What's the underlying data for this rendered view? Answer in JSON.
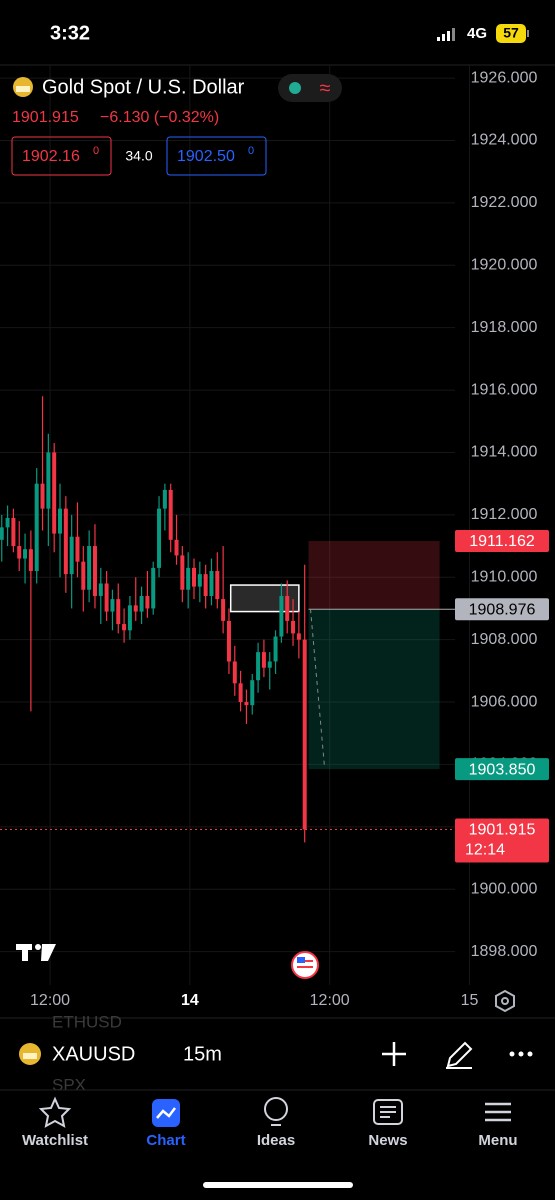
{
  "status_bar": {
    "time": "3:32",
    "network": "4G",
    "battery": "57"
  },
  "header": {
    "title": "Gold Spot / U.S. Dollar",
    "price": "1901.915",
    "change": "−6.130 (−0.32%)",
    "bid": "1902.16",
    "bid_sup": "0",
    "spread": "34.0",
    "ask": "1902.50",
    "ask_sup": "0"
  },
  "chart_data": {
    "type": "candlestick",
    "up_color": "#089981",
    "down_color": "#f23645",
    "candles": [
      [
        1911.2,
        1912,
        1910.5,
        1911.6
      ],
      [
        1911.6,
        1912.3,
        1911,
        1911.9
      ],
      [
        1911.9,
        1912.2,
        1910.8,
        1911.0
      ],
      [
        1911.0,
        1911.8,
        1910.2,
        1910.6
      ],
      [
        1910.6,
        1911.4,
        1909.8,
        1910.9
      ],
      [
        1910.9,
        1911.5,
        1905.7,
        1910.2
      ],
      [
        1910.2,
        1913.5,
        1909.8,
        1913.0
      ],
      [
        1913.0,
        1915.8,
        1911.5,
        1912.2
      ],
      [
        1912.2,
        1914.6,
        1911.0,
        1914.0
      ],
      [
        1914.0,
        1914.3,
        1910.8,
        1911.4
      ],
      [
        1911.4,
        1913.0,
        1910.0,
        1912.2
      ],
      [
        1912.2,
        1912.6,
        1909.5,
        1910.1
      ],
      [
        1910.1,
        1912.0,
        1909.0,
        1911.3
      ],
      [
        1911.3,
        1912.4,
        1910.0,
        1910.5
      ],
      [
        1910.5,
        1911.0,
        1908.9,
        1909.6
      ],
      [
        1909.6,
        1911.5,
        1909.2,
        1911.0
      ],
      [
        1911.0,
        1911.7,
        1909.0,
        1909.4
      ],
      [
        1909.4,
        1910.3,
        1908.5,
        1909.8
      ],
      [
        1909.8,
        1910.2,
        1908.6,
        1908.9
      ],
      [
        1908.9,
        1909.6,
        1908.3,
        1909.3
      ],
      [
        1909.3,
        1909.8,
        1908.2,
        1908.5
      ],
      [
        1908.5,
        1909.0,
        1907.9,
        1908.3
      ],
      [
        1908.3,
        1909.4,
        1908.0,
        1909.1
      ],
      [
        1909.1,
        1910.0,
        1908.6,
        1908.9
      ],
      [
        1908.9,
        1909.7,
        1908.5,
        1909.4
      ],
      [
        1909.4,
        1910.2,
        1908.7,
        1909.0
      ],
      [
        1909.0,
        1910.5,
        1908.8,
        1910.3
      ],
      [
        1910.3,
        1912.6,
        1910.0,
        1912.2
      ],
      [
        1912.2,
        1913.0,
        1911.5,
        1912.8
      ],
      [
        1912.8,
        1913.0,
        1910.8,
        1911.2
      ],
      [
        1911.2,
        1912.0,
        1910.4,
        1910.7
      ],
      [
        1910.7,
        1911.0,
        1909.2,
        1909.6
      ],
      [
        1909.6,
        1910.8,
        1909.0,
        1910.3
      ],
      [
        1910.3,
        1910.6,
        1909.3,
        1909.7
      ],
      [
        1909.7,
        1910.5,
        1909.2,
        1910.1
      ],
      [
        1910.1,
        1910.4,
        1909.0,
        1909.4
      ],
      [
        1909.4,
        1910.6,
        1909.1,
        1910.2
      ],
      [
        1910.2,
        1910.8,
        1909.0,
        1909.3
      ],
      [
        1909.3,
        1911.0,
        1908.2,
        1908.6
      ],
      [
        1908.6,
        1909.0,
        1906.9,
        1907.3
      ],
      [
        1907.3,
        1907.8,
        1906.2,
        1906.6
      ],
      [
        1906.6,
        1907.0,
        1905.7,
        1906.0
      ],
      [
        1906.0,
        1906.4,
        1905.3,
        1905.9
      ],
      [
        1905.9,
        1906.9,
        1905.6,
        1906.7
      ],
      [
        1906.7,
        1907.9,
        1906.3,
        1907.6
      ],
      [
        1907.6,
        1908.0,
        1906.8,
        1907.1
      ],
      [
        1907.1,
        1907.6,
        1906.4,
        1907.3
      ],
      [
        1907.3,
        1908.3,
        1906.9,
        1908.1
      ],
      [
        1908.1,
        1909.8,
        1907.9,
        1909.4
      ],
      [
        1909.4,
        1909.9,
        1908.2,
        1908.6
      ],
      [
        1908.6,
        1909.3,
        1907.8,
        1908.2
      ],
      [
        1908.2,
        1908.9,
        1907.4,
        1908.0
      ],
      [
        1908.0,
        1910.4,
        1901.5,
        1901.915
      ]
    ],
    "ylim": [
      1896.93,
      1926.42
    ],
    "yticks": [
      {
        "value": 1926,
        "label": "1926.000"
      },
      {
        "value": 1924,
        "label": "1924.000"
      },
      {
        "value": 1922,
        "label": "1922.000"
      },
      {
        "value": 1920,
        "label": "1920.000"
      },
      {
        "value": 1918,
        "label": "1918.000"
      },
      {
        "value": 1916,
        "label": "1916.000"
      },
      {
        "value": 1914,
        "label": "1914.000"
      },
      {
        "value": 1912,
        "label": "1912.000"
      },
      {
        "value": 1910,
        "label": "1910.000"
      },
      {
        "value": 1908,
        "label": "1908.000"
      },
      {
        "value": 1906,
        "label": "1906.000"
      },
      {
        "value": 1904,
        "label": "1904.000"
      },
      {
        "value": 1902,
        "label": "1902.000"
      },
      {
        "value": 1900,
        "label": "1900.000"
      },
      {
        "value": 1898,
        "label": "1898.000"
      }
    ],
    "xlim": [
      -4.3,
      73.8
    ],
    "xticks": [
      {
        "value": 4,
        "label": "12:00"
      },
      {
        "value": 28,
        "label": "14"
      },
      {
        "value": 52,
        "label": "12:00"
      },
      {
        "value": 76,
        "label": "15"
      }
    ],
    "box": {
      "top": 1909.75,
      "bottom": 1908.9
    },
    "position": {
      "stop": 1911.162,
      "entry": 1908.976,
      "target": {
        "value": 1903.85,
        "label": "1903.850"
      }
    },
    "last_price": 1901.915,
    "countdown": "12:14",
    "grid": true
  },
  "toolbar": {
    "above": "ETHUSD",
    "symbol": "XAUUSD",
    "interval": "15m",
    "below": "SPX"
  },
  "tabs": [
    "Watchlist",
    "Chart",
    "Ideas",
    "News",
    "Menu"
  ]
}
